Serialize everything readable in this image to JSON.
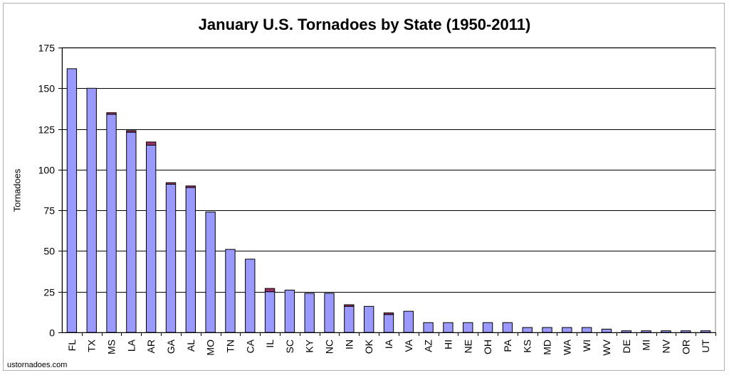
{
  "chart_data": {
    "type": "bar",
    "title": "January U.S. Tornadoes by State (1950-2011)",
    "xlabel": "",
    "ylabel": "Tornadoes",
    "ylim": [
      0,
      175
    ],
    "yticks": [
      0,
      25,
      50,
      75,
      100,
      125,
      150,
      175
    ],
    "grid": true,
    "stacked": true,
    "categories": [
      "FL",
      "TX",
      "MS",
      "LA",
      "AR",
      "GA",
      "AL",
      "MO",
      "TN",
      "CA",
      "IL",
      "SC",
      "KY",
      "NC",
      "IN",
      "OK",
      "IA",
      "VA",
      "AZ",
      "HI",
      "NE",
      "OH",
      "PA",
      "KS",
      "MD",
      "WA",
      "WI",
      "WV",
      "DE",
      "MI",
      "NV",
      "OR",
      "UT"
    ],
    "series": [
      {
        "color": "#9999ff",
        "values": [
          162,
          150,
          134,
          123,
          115,
          91,
          89,
          74,
          51,
          45,
          25,
          26,
          24,
          24,
          16,
          16,
          11,
          13,
          6,
          6,
          6,
          6,
          6,
          3,
          3,
          3,
          3,
          2,
          1,
          1,
          1,
          1,
          1
        ]
      },
      {
        "color": "#993366",
        "values": [
          0,
          0,
          1,
          1,
          2,
          1,
          1,
          0,
          0,
          0,
          2,
          0,
          0,
          0,
          1,
          0,
          1,
          0,
          0,
          0,
          0,
          0,
          0,
          0,
          0,
          0,
          0,
          0,
          0,
          0,
          0,
          0,
          0
        ]
      }
    ]
  },
  "footer": {
    "source": "ustornadoes.com"
  }
}
